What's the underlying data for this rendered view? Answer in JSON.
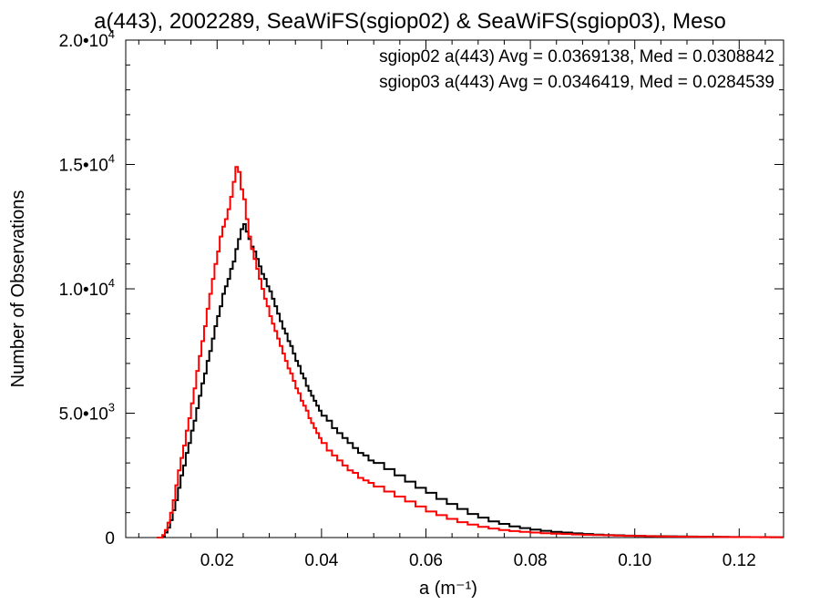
{
  "chart_data": {
    "type": "line",
    "title": "a(443), 2002289, SeaWiFS(sgiop02) & SeaWiFS(sgiop03), Meso",
    "xlabel": "a (m⁻¹)",
    "ylabel": "Number of Observations",
    "xlim": [
      0.0025,
      0.1285
    ],
    "ylim": [
      0,
      20000
    ],
    "xticks": [
      {
        "value": 0.02,
        "label": "0.02"
      },
      {
        "value": 0.04,
        "label": "0.04"
      },
      {
        "value": 0.06,
        "label": "0.06"
      },
      {
        "value": 0.08,
        "label": "0.08"
      },
      {
        "value": 0.1,
        "label": "0.10"
      },
      {
        "value": 0.12,
        "label": "0.12"
      }
    ],
    "yticks": [
      {
        "value": 0,
        "mant": "0",
        "exp": ""
      },
      {
        "value": 5000,
        "mant": "5.0•10",
        "exp": "3"
      },
      {
        "value": 10000,
        "mant": "1.0•10",
        "exp": "4"
      },
      {
        "value": 15000,
        "mant": "1.5•10",
        "exp": "4"
      },
      {
        "value": 20000,
        "mant": "2.0•10",
        "exp": "4"
      }
    ],
    "step_type": "histogram",
    "grid": false,
    "legend_position": "top-right",
    "series": [
      {
        "name": "sgiop02 a(443) Avg = 0.0369138, Med = 0.0308842",
        "color": "#000000",
        "x": [
          0.0085,
          0.0095,
          0.01,
          0.0105,
          0.011,
          0.0115,
          0.012,
          0.0125,
          0.013,
          0.0135,
          0.014,
          0.0145,
          0.015,
          0.0155,
          0.016,
          0.0165,
          0.017,
          0.0175,
          0.018,
          0.0185,
          0.019,
          0.0195,
          0.02,
          0.0205,
          0.021,
          0.0215,
          0.022,
          0.0225,
          0.023,
          0.0235,
          0.024,
          0.0245,
          0.025,
          0.0255,
          0.026,
          0.0265,
          0.027,
          0.0275,
          0.028,
          0.0285,
          0.029,
          0.0295,
          0.03,
          0.0305,
          0.031,
          0.0315,
          0.032,
          0.0325,
          0.033,
          0.0335,
          0.034,
          0.0345,
          0.035,
          0.0355,
          0.036,
          0.0365,
          0.037,
          0.0375,
          0.038,
          0.0385,
          0.039,
          0.0395,
          0.04,
          0.041,
          0.042,
          0.043,
          0.044,
          0.045,
          0.046,
          0.047,
          0.048,
          0.049,
          0.05,
          0.052,
          0.054,
          0.056,
          0.058,
          0.06,
          0.062,
          0.064,
          0.066,
          0.068,
          0.07,
          0.072,
          0.074,
          0.076,
          0.078,
          0.08,
          0.082,
          0.084,
          0.086,
          0.088,
          0.09,
          0.092,
          0.094,
          0.096,
          0.098,
          0.1,
          0.102,
          0.104,
          0.106,
          0.108,
          0.11,
          0.112,
          0.114,
          0.116,
          0.118,
          0.12,
          0.122,
          0.124,
          0.126,
          0.128
        ],
        "y": [
          0,
          50,
          200,
          400,
          700,
          1100,
          1500,
          2000,
          2500,
          2900,
          3400,
          3800,
          4300,
          4700,
          5200,
          5700,
          6200,
          6600,
          7100,
          7500,
          8000,
          8500,
          8900,
          9300,
          9800,
          10100,
          10400,
          10800,
          11100,
          11600,
          12000,
          12400,
          12600,
          12300,
          12000,
          11700,
          11500,
          11200,
          10900,
          10600,
          10400,
          10100,
          9900,
          9600,
          9300,
          9000,
          8700,
          8400,
          8200,
          7900,
          7700,
          7400,
          7100,
          6900,
          6600,
          6400,
          6100,
          5900,
          5700,
          5500,
          5300,
          5100,
          4900,
          4700,
          4400,
          4200,
          4000,
          3800,
          3600,
          3400,
          3300,
          3100,
          3000,
          2750,
          2500,
          2250,
          2000,
          1800,
          1550,
          1350,
          1150,
          950,
          800,
          650,
          550,
          450,
          380,
          320,
          270,
          230,
          200,
          170,
          140,
          120,
          100,
          90,
          80,
          70,
          60,
          55,
          50,
          45,
          40,
          35,
          30,
          28,
          25,
          22,
          20,
          18,
          15,
          12
        ]
      },
      {
        "name": "sgiop03 a(443) Avg = 0.0346419, Med = 0.0284539",
        "color": "#ff0000",
        "x": [
          0.0085,
          0.0095,
          0.01,
          0.0105,
          0.011,
          0.0115,
          0.012,
          0.0125,
          0.013,
          0.0135,
          0.014,
          0.0145,
          0.015,
          0.0155,
          0.016,
          0.0165,
          0.017,
          0.0175,
          0.018,
          0.0185,
          0.019,
          0.0195,
          0.02,
          0.0205,
          0.021,
          0.0215,
          0.022,
          0.0225,
          0.023,
          0.0235,
          0.024,
          0.0245,
          0.025,
          0.0255,
          0.026,
          0.0265,
          0.027,
          0.0275,
          0.028,
          0.0285,
          0.029,
          0.0295,
          0.03,
          0.0305,
          0.031,
          0.0315,
          0.032,
          0.0325,
          0.033,
          0.0335,
          0.034,
          0.0345,
          0.035,
          0.0355,
          0.036,
          0.0365,
          0.037,
          0.0375,
          0.038,
          0.0385,
          0.039,
          0.0395,
          0.04,
          0.041,
          0.042,
          0.043,
          0.044,
          0.045,
          0.046,
          0.047,
          0.048,
          0.049,
          0.05,
          0.052,
          0.054,
          0.056,
          0.058,
          0.06,
          0.062,
          0.064,
          0.066,
          0.068,
          0.07,
          0.072,
          0.074,
          0.076,
          0.078,
          0.08,
          0.082,
          0.084,
          0.086,
          0.088,
          0.09,
          0.092,
          0.094,
          0.096,
          0.098,
          0.1,
          0.102,
          0.104,
          0.106,
          0.108,
          0.11,
          0.112,
          0.114,
          0.116,
          0.118,
          0.12,
          0.122,
          0.124,
          0.126,
          0.128
        ],
        "y": [
          0,
          100,
          300,
          600,
          1000,
          1500,
          2100,
          2700,
          3200,
          3700,
          4300,
          4800,
          5400,
          6000,
          6700,
          7300,
          7900,
          8500,
          9200,
          9800,
          10400,
          11000,
          11500,
          12100,
          12500,
          12800,
          13200,
          13700,
          14300,
          14900,
          14700,
          14000,
          13600,
          12800,
          12100,
          11600,
          11200,
          10800,
          10400,
          10000,
          9600,
          9300,
          8900,
          8600,
          8300,
          8000,
          7700,
          7400,
          7100,
          6800,
          6600,
          6300,
          6000,
          5800,
          5500,
          5300,
          5100,
          4800,
          4600,
          4400,
          4200,
          4000,
          3800,
          3500,
          3300,
          3100,
          2900,
          2700,
          2600,
          2400,
          2300,
          2200,
          2050,
          1850,
          1650,
          1450,
          1250,
          1050,
          900,
          750,
          620,
          520,
          430,
          360,
          300,
          260,
          230,
          200,
          175,
          155,
          140,
          125,
          110,
          100,
          90,
          80,
          70,
          62,
          55,
          48,
          42,
          38,
          34,
          30,
          26,
          23,
          20,
          18,
          16,
          14,
          12,
          10
        ]
      }
    ]
  }
}
